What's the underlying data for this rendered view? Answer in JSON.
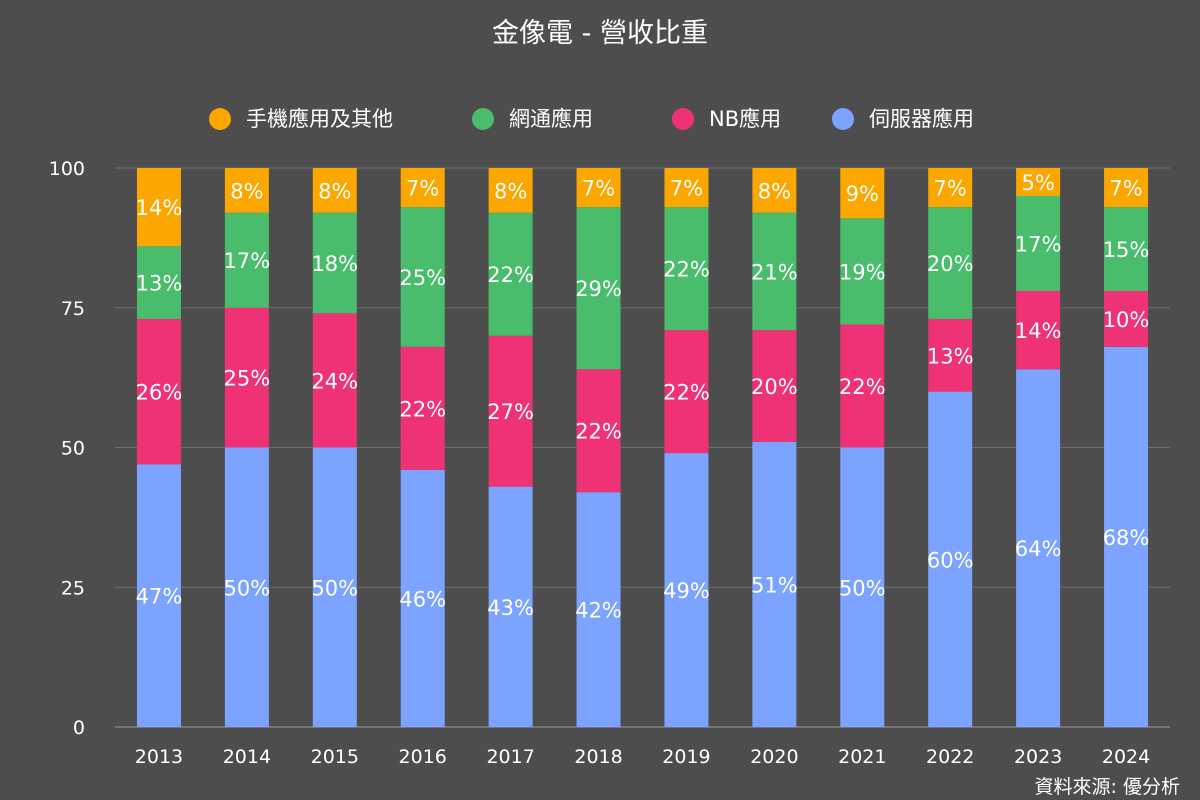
{
  "chart_data": {
    "type": "bar",
    "stacked": true,
    "title": "金像電 - 營收比重",
    "categories": [
      "2013",
      "2014",
      "2015",
      "2016",
      "2017",
      "2018",
      "2019",
      "2020",
      "2021",
      "2022",
      "2023",
      "2024"
    ],
    "ylim": [
      0,
      100
    ],
    "yticks": [
      0,
      25,
      50,
      75,
      100
    ],
    "grid": true,
    "legend_position": "top",
    "series": [
      {
        "name": "伺服器應用",
        "color": "#7ba3ff",
        "values": [
          47,
          50,
          50,
          46,
          43,
          42,
          49,
          51,
          50,
          60,
          64,
          68
        ]
      },
      {
        "name": "NB應用",
        "color": "#ee3275",
        "values": [
          26,
          25,
          24,
          22,
          27,
          22,
          22,
          20,
          22,
          13,
          14,
          10
        ]
      },
      {
        "name": "網通應用",
        "color": "#49bd6b",
        "values": [
          13,
          17,
          18,
          25,
          22,
          29,
          22,
          21,
          19,
          20,
          17,
          15
        ]
      },
      {
        "name": "手機應用及其他",
        "color": "#fca600",
        "values": [
          14,
          8,
          8,
          7,
          8,
          7,
          7,
          8,
          9,
          7,
          5,
          7
        ]
      }
    ],
    "legend_order": [
      3,
      2,
      1,
      0
    ],
    "label_suffix": "%"
  },
  "source_text": "資料來源: 優分析",
  "colors": {
    "background": "#4d4d4d",
    "grid": "#6e6e6e",
    "axis": "#9a9a9a",
    "text": "#ffffff"
  }
}
